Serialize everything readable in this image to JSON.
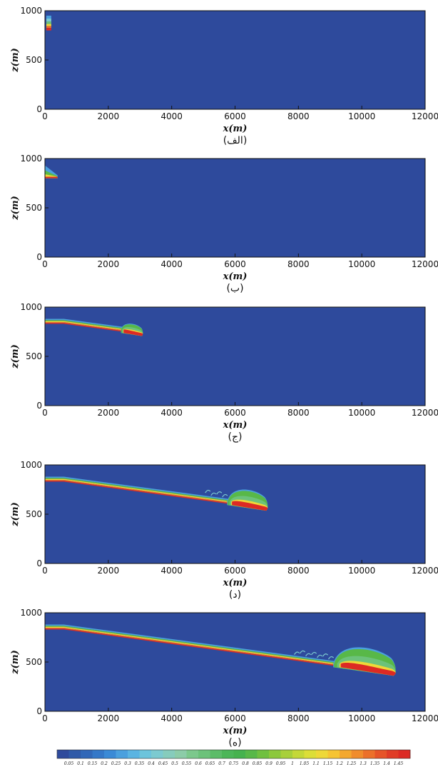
{
  "chart_data": [
    {
      "type": "heatmap",
      "caption": "(الف)",
      "xlabel": "x(m)",
      "ylabel": "z(m)",
      "xlim": [
        0,
        12000
      ],
      "ylim": [
        0,
        1000
      ],
      "xticks": [
        0,
        2000,
        4000,
        6000,
        8000,
        10000,
        12000
      ],
      "yticks": [
        0,
        500,
        1000
      ],
      "current_front_x": 200,
      "current_top_z": 950,
      "current_bottom_z": 800
    },
    {
      "type": "heatmap",
      "caption": "(ب)",
      "xlabel": "x(m)",
      "ylabel": "z(m)",
      "xlim": [
        0,
        12000
      ],
      "ylim": [
        0,
        1000
      ],
      "xticks": [
        0,
        2000,
        4000,
        6000,
        8000,
        10000,
        12000
      ],
      "yticks": [
        0,
        500,
        1000
      ],
      "current_front_x": 400,
      "current_top_z": 930,
      "current_bottom_z": 800
    },
    {
      "type": "heatmap",
      "caption": "(ج)",
      "xlabel": "x(m)",
      "ylabel": "z(m)",
      "xlim": [
        0,
        12000
      ],
      "ylim": [
        0,
        1000
      ],
      "xticks": [
        0,
        2000,
        4000,
        6000,
        8000,
        10000,
        12000
      ],
      "yticks": [
        0,
        500,
        1000
      ],
      "current_front_x": 3100,
      "current_top_z": 880,
      "current_bottom_z": 830
    },
    {
      "type": "heatmap",
      "caption": "(د)",
      "xlabel": "x(m)",
      "ylabel": "z(m)",
      "xlim": [
        0,
        12000
      ],
      "ylim": [
        0,
        1000
      ],
      "xticks": [
        0,
        2000,
        4000,
        6000,
        8000,
        10000,
        12000
      ],
      "yticks": [
        0,
        500,
        1000
      ],
      "current_front_x": 7050,
      "current_top_z": 880,
      "current_bottom_z": 830
    },
    {
      "type": "heatmap",
      "caption": "(ه)",
      "xlabel": "x(m)",
      "ylabel": "z(m)",
      "xlim": [
        0,
        12000
      ],
      "ylim": [
        0,
        1000
      ],
      "xticks": [
        0,
        2000,
        4000,
        6000,
        8000,
        10000,
        12000
      ],
      "yticks": [
        0,
        500,
        1000
      ],
      "current_front_x": 11100,
      "current_top_z": 880,
      "current_bottom_z": 830
    }
  ],
  "colorbar": {
    "ticks": [
      "0.05",
      "0.1",
      "0.15",
      "0.2",
      "0.25",
      "0.3",
      "0.35",
      "0.4",
      "0.45",
      "0.5",
      "0.55",
      "0.6",
      "0.65",
      "0.7",
      "0.75",
      "0.8",
      "0.85",
      "0.9",
      "0.95",
      "1",
      "1.05",
      "1.1",
      "1.15",
      "1.2",
      "1.25",
      "1.3",
      "1.35",
      "1.4",
      "1.45"
    ],
    "colors": [
      "#2e4a9c",
      "#2f5aa8",
      "#3168b8",
      "#3478c8",
      "#3a8ad6",
      "#4aa0de",
      "#5ab4e2",
      "#6cc4dc",
      "#7ccad0",
      "#86ccbc",
      "#8ccca8",
      "#7cc88c",
      "#6cc27a",
      "#5cbc68",
      "#4cb658",
      "#46b24e",
      "#58b848",
      "#70c040",
      "#8cc83c",
      "#a8d03a",
      "#c4d838",
      "#dcde38",
      "#eed838",
      "#f6c432",
      "#f4a82e",
      "#f08c2c",
      "#ec702a",
      "#e65428",
      "#e03c26",
      "#dc2a24"
    ],
    "field_color": "#2e4a9c"
  }
}
